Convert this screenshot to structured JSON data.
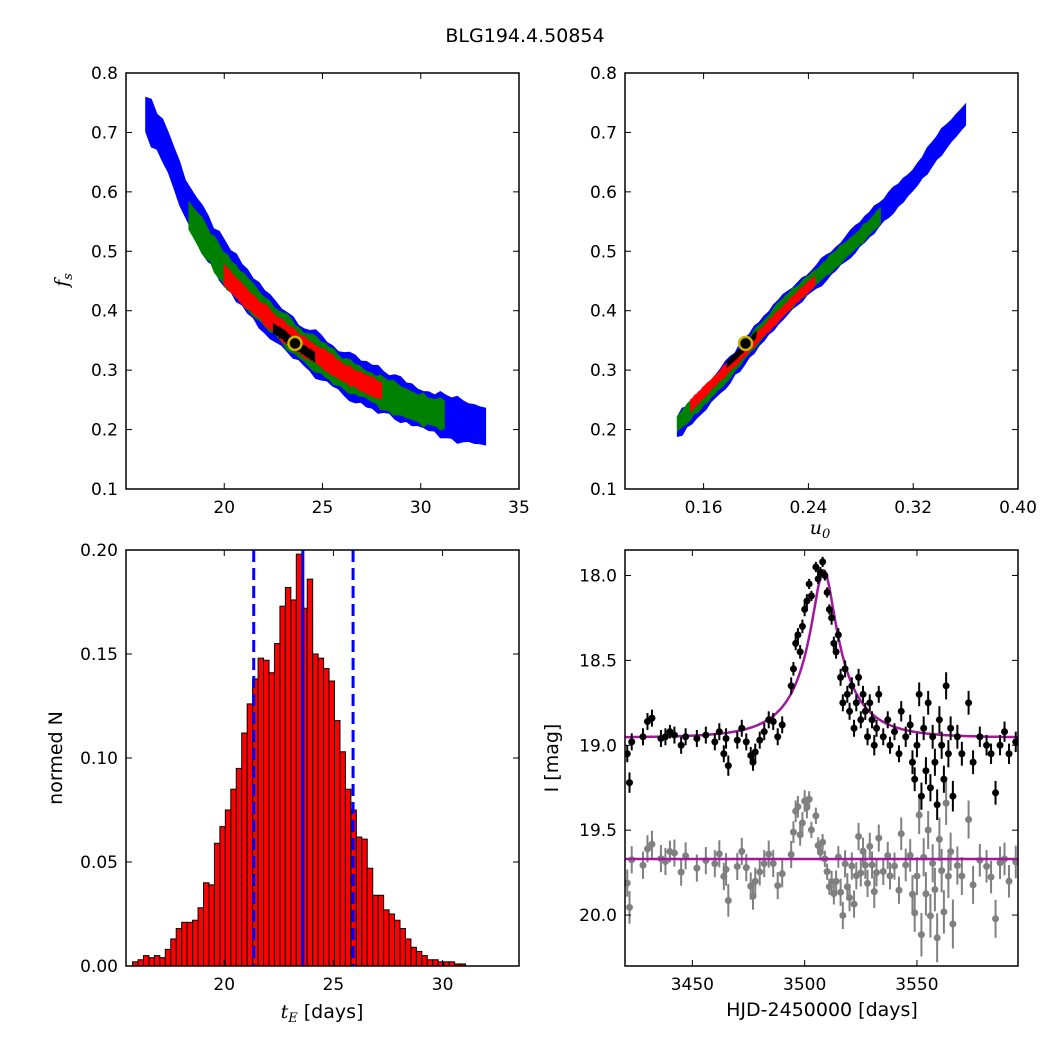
{
  "title": "BLG194.4.50854",
  "colors": {
    "blue": "#0000ff",
    "green": "#008000",
    "red": "#ff0000",
    "black": "#000000",
    "purple": "#a0189c",
    "gray": "#808080",
    "best_fill": "#000000",
    "best_ring": "#c8b400"
  },
  "chart_data": [
    {
      "id": "tE_vs_fs",
      "type": "heatmap",
      "xlabel": "",
      "ylabel_main": "f",
      "ylabel_sub": "s",
      "xlim": [
        15,
        35
      ],
      "ylim": [
        0.1,
        0.8
      ],
      "xticks": [
        "20",
        "25",
        "30",
        "35"
      ],
      "yticks": [
        "0.1",
        "0.2",
        "0.3",
        "0.4",
        "0.5",
        "0.6",
        "0.7",
        "0.8"
      ],
      "best_fit": {
        "x": 23.6,
        "y": 0.345
      },
      "regions": [
        {
          "level": "3-sigma",
          "color": "#0000ff",
          "ridge": [
            [
              16.0,
              0.73
            ],
            [
              17.0,
              0.68
            ],
            [
              18.0,
              0.59
            ],
            [
              19.0,
              0.53
            ],
            [
              20.0,
              0.48
            ],
            [
              21.0,
              0.44
            ],
            [
              22.0,
              0.4
            ],
            [
              23.0,
              0.37
            ],
            [
              24.0,
              0.34
            ],
            [
              25.0,
              0.32
            ],
            [
              26.0,
              0.295
            ],
            [
              27.0,
              0.28
            ],
            [
              28.0,
              0.265
            ],
            [
              29.0,
              0.25
            ],
            [
              30.0,
              0.235
            ],
            [
              31.0,
              0.225
            ],
            [
              32.0,
              0.215
            ],
            [
              33.3,
              0.205
            ]
          ],
          "width": 0.035
        },
        {
          "level": "2-sigma",
          "color": "#008000",
          "ridge": [
            [
              18.2,
              0.56
            ],
            [
              19.0,
              0.52
            ],
            [
              20.0,
              0.47
            ],
            [
              21.0,
              0.435
            ],
            [
              22.0,
              0.4
            ],
            [
              23.0,
              0.37
            ],
            [
              24.0,
              0.34
            ],
            [
              25.0,
              0.32
            ],
            [
              26.0,
              0.295
            ],
            [
              27.0,
              0.28
            ],
            [
              28.0,
              0.262
            ],
            [
              29.0,
              0.248
            ],
            [
              30.0,
              0.234
            ],
            [
              31.2,
              0.225
            ]
          ],
          "width": 0.026
        },
        {
          "level": "1-sigma",
          "color": "#ff0000",
          "ridge": [
            [
              20.0,
              0.46
            ],
            [
              21.0,
              0.425
            ],
            [
              22.0,
              0.395
            ],
            [
              23.0,
              0.365
            ],
            [
              24.0,
              0.34
            ],
            [
              25.0,
              0.32
            ],
            [
              26.0,
              0.297
            ],
            [
              27.0,
              0.28
            ],
            [
              28.0,
              0.265
            ]
          ],
          "width": 0.016
        },
        {
          "level": "best",
          "color": "#000000",
          "ridge": [
            [
              22.5,
              0.37
            ],
            [
              23.0,
              0.36
            ],
            [
              23.5,
              0.345
            ],
            [
              24.0,
              0.335
            ],
            [
              24.6,
              0.322
            ]
          ],
          "width": 0.008
        }
      ]
    },
    {
      "id": "u0_vs_fs",
      "type": "heatmap",
      "xlabel_main": "u",
      "xlabel_sub": "0",
      "ylabel": "",
      "xlim": [
        0.1,
        0.4
      ],
      "ylim": [
        0.1,
        0.8
      ],
      "xticks": [
        "0.16",
        "0.24",
        "0.32",
        "0.40"
      ],
      "xtick_values": [
        0.16,
        0.24,
        0.32,
        0.4
      ],
      "yticks": [
        "0.1",
        "0.2",
        "0.3",
        "0.4",
        "0.5",
        "0.6",
        "0.7",
        "0.8"
      ],
      "best_fit": {
        "x": 0.192,
        "y": 0.345
      },
      "regions": [
        {
          "level": "3-sigma",
          "color": "#0000ff",
          "ridge": [
            [
              0.14,
              0.205
            ],
            [
              0.16,
              0.25
            ],
            [
              0.18,
              0.3
            ],
            [
              0.2,
              0.355
            ],
            [
              0.22,
              0.405
            ],
            [
              0.24,
              0.445
            ],
            [
              0.26,
              0.485
            ],
            [
              0.28,
              0.53
            ],
            [
              0.3,
              0.575
            ],
            [
              0.32,
              0.62
            ],
            [
              0.34,
              0.68
            ],
            [
              0.36,
              0.73
            ]
          ],
          "width": 0.02
        },
        {
          "level": "2-sigma",
          "color": "#008000",
          "ridge": [
            [
              0.14,
              0.21
            ],
            [
              0.16,
              0.255
            ],
            [
              0.18,
              0.3
            ],
            [
              0.2,
              0.355
            ],
            [
              0.22,
              0.405
            ],
            [
              0.24,
              0.445
            ],
            [
              0.26,
              0.485
            ],
            [
              0.28,
              0.525
            ],
            [
              0.295,
              0.56
            ]
          ],
          "width": 0.014
        },
        {
          "level": "1-sigma",
          "color": "#ff0000",
          "ridge": [
            [
              0.15,
              0.24
            ],
            [
              0.17,
              0.285
            ],
            [
              0.19,
              0.33
            ],
            [
              0.21,
              0.375
            ],
            [
              0.23,
              0.42
            ],
            [
              0.245,
              0.45
            ]
          ],
          "width": 0.009
        },
        {
          "level": "best",
          "color": "#000000",
          "ridge": [
            [
              0.178,
              0.31
            ],
            [
              0.19,
              0.335
            ],
            [
              0.2,
              0.36
            ]
          ],
          "width": 0.005
        }
      ]
    },
    {
      "id": "tE_histogram",
      "type": "bar",
      "xlabel_main": "t",
      "xlabel_sub": "E",
      "xlabel_rest": " [days]",
      "ylabel": "normed N",
      "xlim": [
        15.5,
        33.5
      ],
      "ylim": [
        0.0,
        0.2
      ],
      "xticks": [
        "20",
        "25",
        "30"
      ],
      "yticks": [
        "0.00",
        "0.05",
        "0.10",
        "0.15",
        "0.20"
      ],
      "bin_start": 15.8,
      "bin_width": 0.25,
      "values": [
        0.002,
        0.003,
        0.005,
        0.004,
        0.005,
        0.004,
        0.008,
        0.013,
        0.018,
        0.021,
        0.021,
        0.022,
        0.028,
        0.04,
        0.039,
        0.059,
        0.067,
        0.075,
        0.085,
        0.095,
        0.112,
        0.126,
        0.138,
        0.148,
        0.147,
        0.141,
        0.155,
        0.173,
        0.182,
        0.176,
        0.198,
        0.172,
        0.186,
        0.15,
        0.148,
        0.143,
        0.137,
        0.118,
        0.103,
        0.085,
        0.075,
        0.062,
        0.061,
        0.047,
        0.034,
        0.034,
        0.027,
        0.025,
        0.022,
        0.018,
        0.013,
        0.009,
        0.007,
        0.005,
        0.003,
        0.003,
        0.002,
        0.002,
        0.002,
        0.001,
        0.001
      ],
      "median": 23.6,
      "lower": 21.35,
      "upper": 25.9,
      "bar_color": "#ff0000",
      "line_color": "#0000ff"
    },
    {
      "id": "light_curve",
      "type": "scatter",
      "xlabel": "HJD-2450000 [days]",
      "ylabel": "I [mag]",
      "xlim": [
        3420,
        3595
      ],
      "ylim": [
        20.3,
        17.85
      ],
      "xticks": [
        "3450",
        "3500",
        "3550"
      ],
      "yticks": [
        "18.0",
        "18.5",
        "19.0",
        "19.5",
        "20.0"
      ],
      "model": {
        "t0": 3508.5,
        "tE": 23.6,
        "u0": 0.192,
        "fs": 0.345,
        "base": 18.955,
        "residual_level": 19.67
      },
      "data": [
        [
          3421,
          19.05,
          0.05
        ],
        [
          3422,
          19.22,
          0.06
        ],
        [
          3423,
          18.98,
          0.05
        ],
        [
          3428,
          18.95,
          0.05
        ],
        [
          3430,
          18.86,
          0.05
        ],
        [
          3432,
          18.84,
          0.05
        ],
        [
          3436,
          18.96,
          0.05
        ],
        [
          3438,
          18.95,
          0.05
        ],
        [
          3440,
          18.92,
          0.04
        ],
        [
          3442,
          18.94,
          0.05
        ],
        [
          3445,
          19.0,
          0.05
        ],
        [
          3447,
          18.95,
          0.05
        ],
        [
          3452,
          18.96,
          0.05
        ],
        [
          3456,
          18.94,
          0.05
        ],
        [
          3460,
          18.98,
          0.05
        ],
        [
          3462,
          18.92,
          0.05
        ],
        [
          3464,
          19.05,
          0.05
        ],
        [
          3465,
          18.96,
          0.06
        ],
        [
          3466,
          19.12,
          0.06
        ],
        [
          3470,
          18.97,
          0.05
        ],
        [
          3472,
          18.9,
          0.05
        ],
        [
          3474,
          18.98,
          0.05
        ],
        [
          3476,
          19.06,
          0.05
        ],
        [
          3477,
          19.1,
          0.05
        ],
        [
          3478,
          19.04,
          0.05
        ],
        [
          3480,
          18.97,
          0.05
        ],
        [
          3482,
          18.92,
          0.05
        ],
        [
          3484,
          18.85,
          0.05
        ],
        [
          3486,
          18.86,
          0.05
        ],
        [
          3488,
          18.95,
          0.05
        ],
        [
          3490,
          18.88,
          0.05
        ],
        [
          3494,
          18.65,
          0.05
        ],
        [
          3495,
          18.55,
          0.04
        ],
        [
          3496,
          18.4,
          0.04
        ],
        [
          3497,
          18.35,
          0.04
        ],
        [
          3498,
          18.45,
          0.04
        ],
        [
          3499,
          18.3,
          0.04
        ],
        [
          3500,
          18.2,
          0.04
        ],
        [
          3501,
          18.15,
          0.04
        ],
        [
          3502,
          18.05,
          0.03
        ],
        [
          3503,
          18.12,
          0.03
        ],
        [
          3505,
          17.95,
          0.03
        ],
        [
          3506,
          18.02,
          0.03
        ],
        [
          3507,
          17.98,
          0.03
        ],
        [
          3508,
          17.92,
          0.03
        ],
        [
          3509,
          18.0,
          0.03
        ],
        [
          3510,
          18.1,
          0.03
        ],
        [
          3511,
          18.2,
          0.03
        ],
        [
          3512,
          18.25,
          0.04
        ],
        [
          3513,
          18.4,
          0.04
        ],
        [
          3514,
          18.45,
          0.04
        ],
        [
          3515,
          18.35,
          0.04
        ],
        [
          3516,
          18.6,
          0.05
        ],
        [
          3517,
          18.75,
          0.05
        ],
        [
          3518,
          18.55,
          0.05
        ],
        [
          3519,
          18.7,
          0.05
        ],
        [
          3520,
          18.8,
          0.05
        ],
        [
          3521,
          18.65,
          0.05
        ],
        [
          3522,
          18.9,
          0.05
        ],
        [
          3523,
          18.75,
          0.05
        ],
        [
          3524,
          18.6,
          0.05
        ],
        [
          3525,
          18.85,
          0.05
        ],
        [
          3526,
          18.7,
          0.05
        ],
        [
          3527,
          18.8,
          0.05
        ],
        [
          3528,
          18.95,
          0.05
        ],
        [
          3529,
          18.75,
          0.05
        ],
        [
          3530,
          18.85,
          0.05
        ],
        [
          3531,
          19.0,
          0.06
        ],
        [
          3532,
          18.9,
          0.05
        ],
        [
          3533,
          18.7,
          0.05
        ],
        [
          3535,
          18.95,
          0.05
        ],
        [
          3537,
          18.85,
          0.05
        ],
        [
          3538,
          19.0,
          0.05
        ],
        [
          3540,
          18.92,
          0.05
        ],
        [
          3542,
          19.05,
          0.05
        ],
        [
          3543,
          18.8,
          0.06
        ],
        [
          3545,
          18.95,
          0.06
        ],
        [
          3547,
          18.88,
          0.06
        ],
        [
          3548,
          19.1,
          0.07
        ],
        [
          3549,
          19.2,
          0.07
        ],
        [
          3550,
          19.0,
          0.07
        ],
        [
          3551,
          18.7,
          0.07
        ],
        [
          3552,
          19.3,
          0.08
        ],
        [
          3553,
          18.9,
          0.07
        ],
        [
          3554,
          19.15,
          0.08
        ],
        [
          3555,
          18.75,
          0.07
        ],
        [
          3556,
          19.25,
          0.08
        ],
        [
          3557,
          18.95,
          0.07
        ],
        [
          3558,
          19.1,
          0.08
        ],
        [
          3559,
          19.35,
          0.09
        ],
        [
          3560,
          18.85,
          0.08
        ],
        [
          3561,
          19.0,
          0.08
        ],
        [
          3562,
          19.2,
          0.08
        ],
        [
          3563,
          18.65,
          0.08
        ],
        [
          3564,
          19.05,
          0.08
        ],
        [
          3565,
          18.9,
          0.07
        ],
        [
          3566,
          19.3,
          0.09
        ],
        [
          3568,
          18.95,
          0.07
        ],
        [
          3570,
          19.05,
          0.07
        ],
        [
          3573,
          18.75,
          0.07
        ],
        [
          3575,
          19.1,
          0.07
        ],
        [
          3578,
          18.95,
          0.06
        ],
        [
          3581,
          19.0,
          0.06
        ],
        [
          3583,
          19.05,
          0.06
        ],
        [
          3585,
          19.28,
          0.07
        ],
        [
          3587,
          19.0,
          0.06
        ],
        [
          3589,
          18.92,
          0.06
        ],
        [
          3591,
          19.05,
          0.06
        ],
        [
          3594,
          18.98,
          0.06
        ]
      ],
      "colors": {
        "data": "#000000",
        "residual": "#808080",
        "model": "#a0189c"
      }
    }
  ]
}
